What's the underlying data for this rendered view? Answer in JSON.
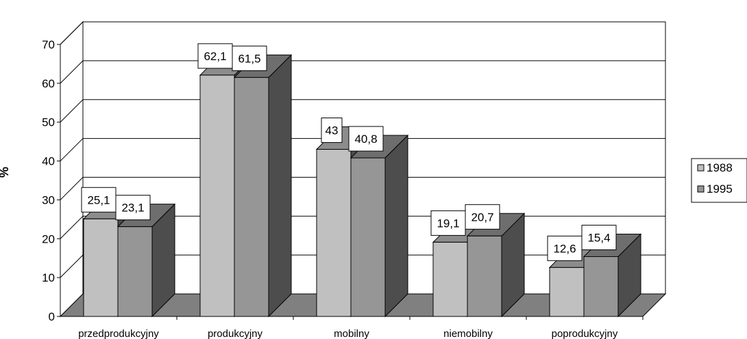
{
  "chart_data": {
    "type": "bar",
    "title": "",
    "xlabel": "",
    "ylabel": "%",
    "ylim": [
      0,
      70
    ],
    "yticks": [
      0,
      10,
      20,
      30,
      40,
      50,
      60,
      70
    ],
    "grid": true,
    "legend_position": "right",
    "categories": [
      "przedprodukcyjny",
      "produkcyjny",
      "mobilny",
      "niemobilny",
      "poprodukcyjny"
    ],
    "series": [
      {
        "name": "1988",
        "color": "#c0c0c0",
        "values": [
          25.1,
          62.1,
          43,
          19.1,
          12.6
        ],
        "labels": [
          "25,1",
          "62,1",
          "43",
          "19,1",
          "12,6"
        ]
      },
      {
        "name": "1995",
        "color": "#969696",
        "values": [
          23.1,
          61.5,
          40.8,
          20.7,
          15.4
        ],
        "labels": [
          "23,1",
          "61,5",
          "40,8",
          "20,7",
          "15,4"
        ]
      }
    ]
  }
}
